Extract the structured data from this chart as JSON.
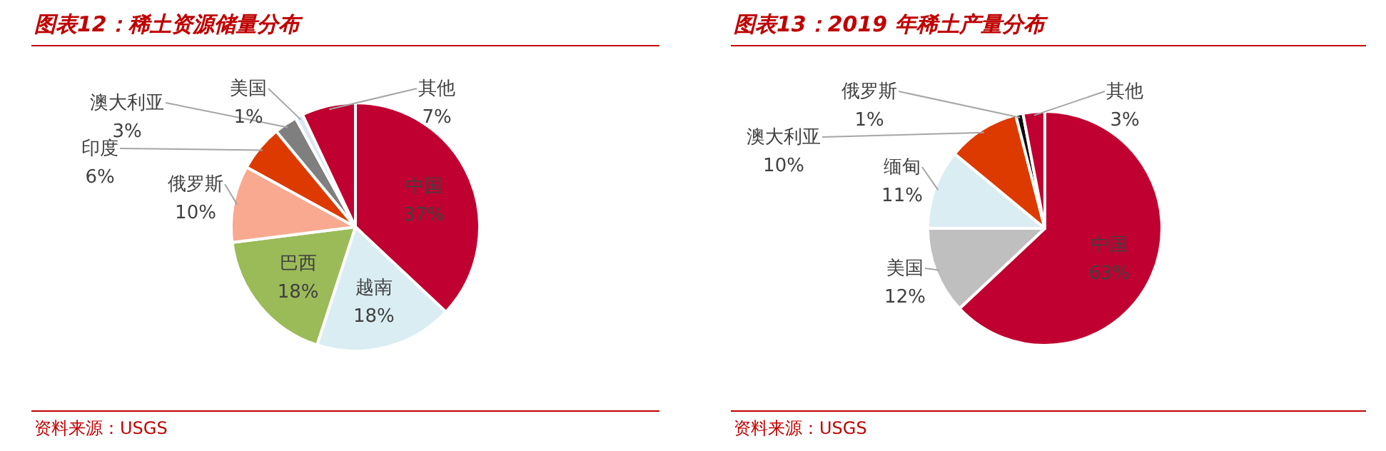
{
  "chart_data": [
    {
      "type": "pie",
      "title": "图表12：稀土资源储量分布",
      "categories": [
        "中国",
        "越南",
        "巴西",
        "俄罗斯",
        "印度",
        "澳大利亚",
        "美国",
        "其他"
      ],
      "values": [
        37,
        18,
        18,
        10,
        6,
        3,
        1,
        7
      ],
      "value_labels": [
        "37%",
        "18%",
        "18%",
        "10%",
        "6%",
        "3%",
        "1%",
        "7%"
      ],
      "colors": [
        "#c00030",
        "#daedf3",
        "#9bbb59",
        "#f9a98f",
        "#dd3a00",
        "#7f7f7f",
        "#d9e7ef",
        "#c00030"
      ],
      "annotations": [
        "资料来源：USGS"
      ]
    },
    {
      "type": "pie",
      "title": "图表13：2019 年稀土产量分布",
      "categories": [
        "中国",
        "美国",
        "缅甸",
        "澳大利亚",
        "俄罗斯",
        "其他"
      ],
      "values": [
        63,
        12,
        11,
        10,
        1,
        3
      ],
      "value_labels": [
        "63%",
        "12%",
        "11%",
        "10%",
        "1%",
        "3%"
      ],
      "colors": [
        "#c00030",
        "#bfbfbf",
        "#daedf3",
        "#dd3a00",
        "#0d0d0d",
        "#c00030"
      ],
      "annotations": [
        "资料来源：USGS"
      ]
    }
  ]
}
